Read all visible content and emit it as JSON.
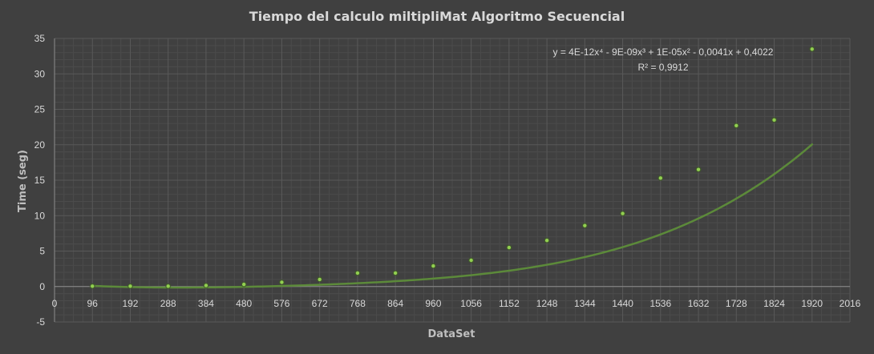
{
  "chart_data": {
    "type": "scatter",
    "title": "Tiempo  del calculo miltipliMat Algoritmo Secuencial",
    "xlabel": "DataSet",
    "ylabel": "Time (seg)",
    "xlim": [
      0,
      2016
    ],
    "ylim": [
      -5,
      35
    ],
    "x_ticks": [
      "0",
      "96",
      "192",
      "288",
      "384",
      "480",
      "576",
      "672",
      "768",
      "864",
      "960",
      "1056",
      "1152",
      "1248",
      "1344",
      "1440",
      "1536",
      "1632",
      "1728",
      "1824",
      "1920",
      "2016"
    ],
    "y_ticks": [
      "-5",
      "0",
      "5",
      "10",
      "15",
      "20",
      "25",
      "30",
      "35"
    ],
    "grid": true,
    "legend": "none",
    "series": [
      {
        "x": [
          96,
          192,
          288,
          384,
          480,
          576,
          672,
          768,
          864,
          960,
          1056,
          1152,
          1248,
          1344,
          1440,
          1536,
          1632,
          1728,
          1824,
          1920
        ],
        "y": [
          0.05,
          0.05,
          0.05,
          0.15,
          0.3,
          0.6,
          1.0,
          1.9,
          1.9,
          2.9,
          3.7,
          5.5,
          6.5,
          8.6,
          10.3,
          15.3,
          16.5,
          22.7,
          23.5,
          33.5
        ],
        "color": "#92d050"
      }
    ],
    "trendline": {
      "type": "polynomial",
      "order": 4,
      "coefficients": [
        0.4022,
        -0.0041,
        1e-05,
        -9e-09,
        4e-12
      ],
      "color": "#5c8a3a",
      "equation": "y = 4E-12x⁴ - 9E-09x³ + 1E-05x² - 0,0041x + 0,4022",
      "r2": "R² = 0,9912"
    },
    "colors": {
      "background": "#404040",
      "grid": "#595959",
      "text": "#d9d9d9"
    }
  }
}
